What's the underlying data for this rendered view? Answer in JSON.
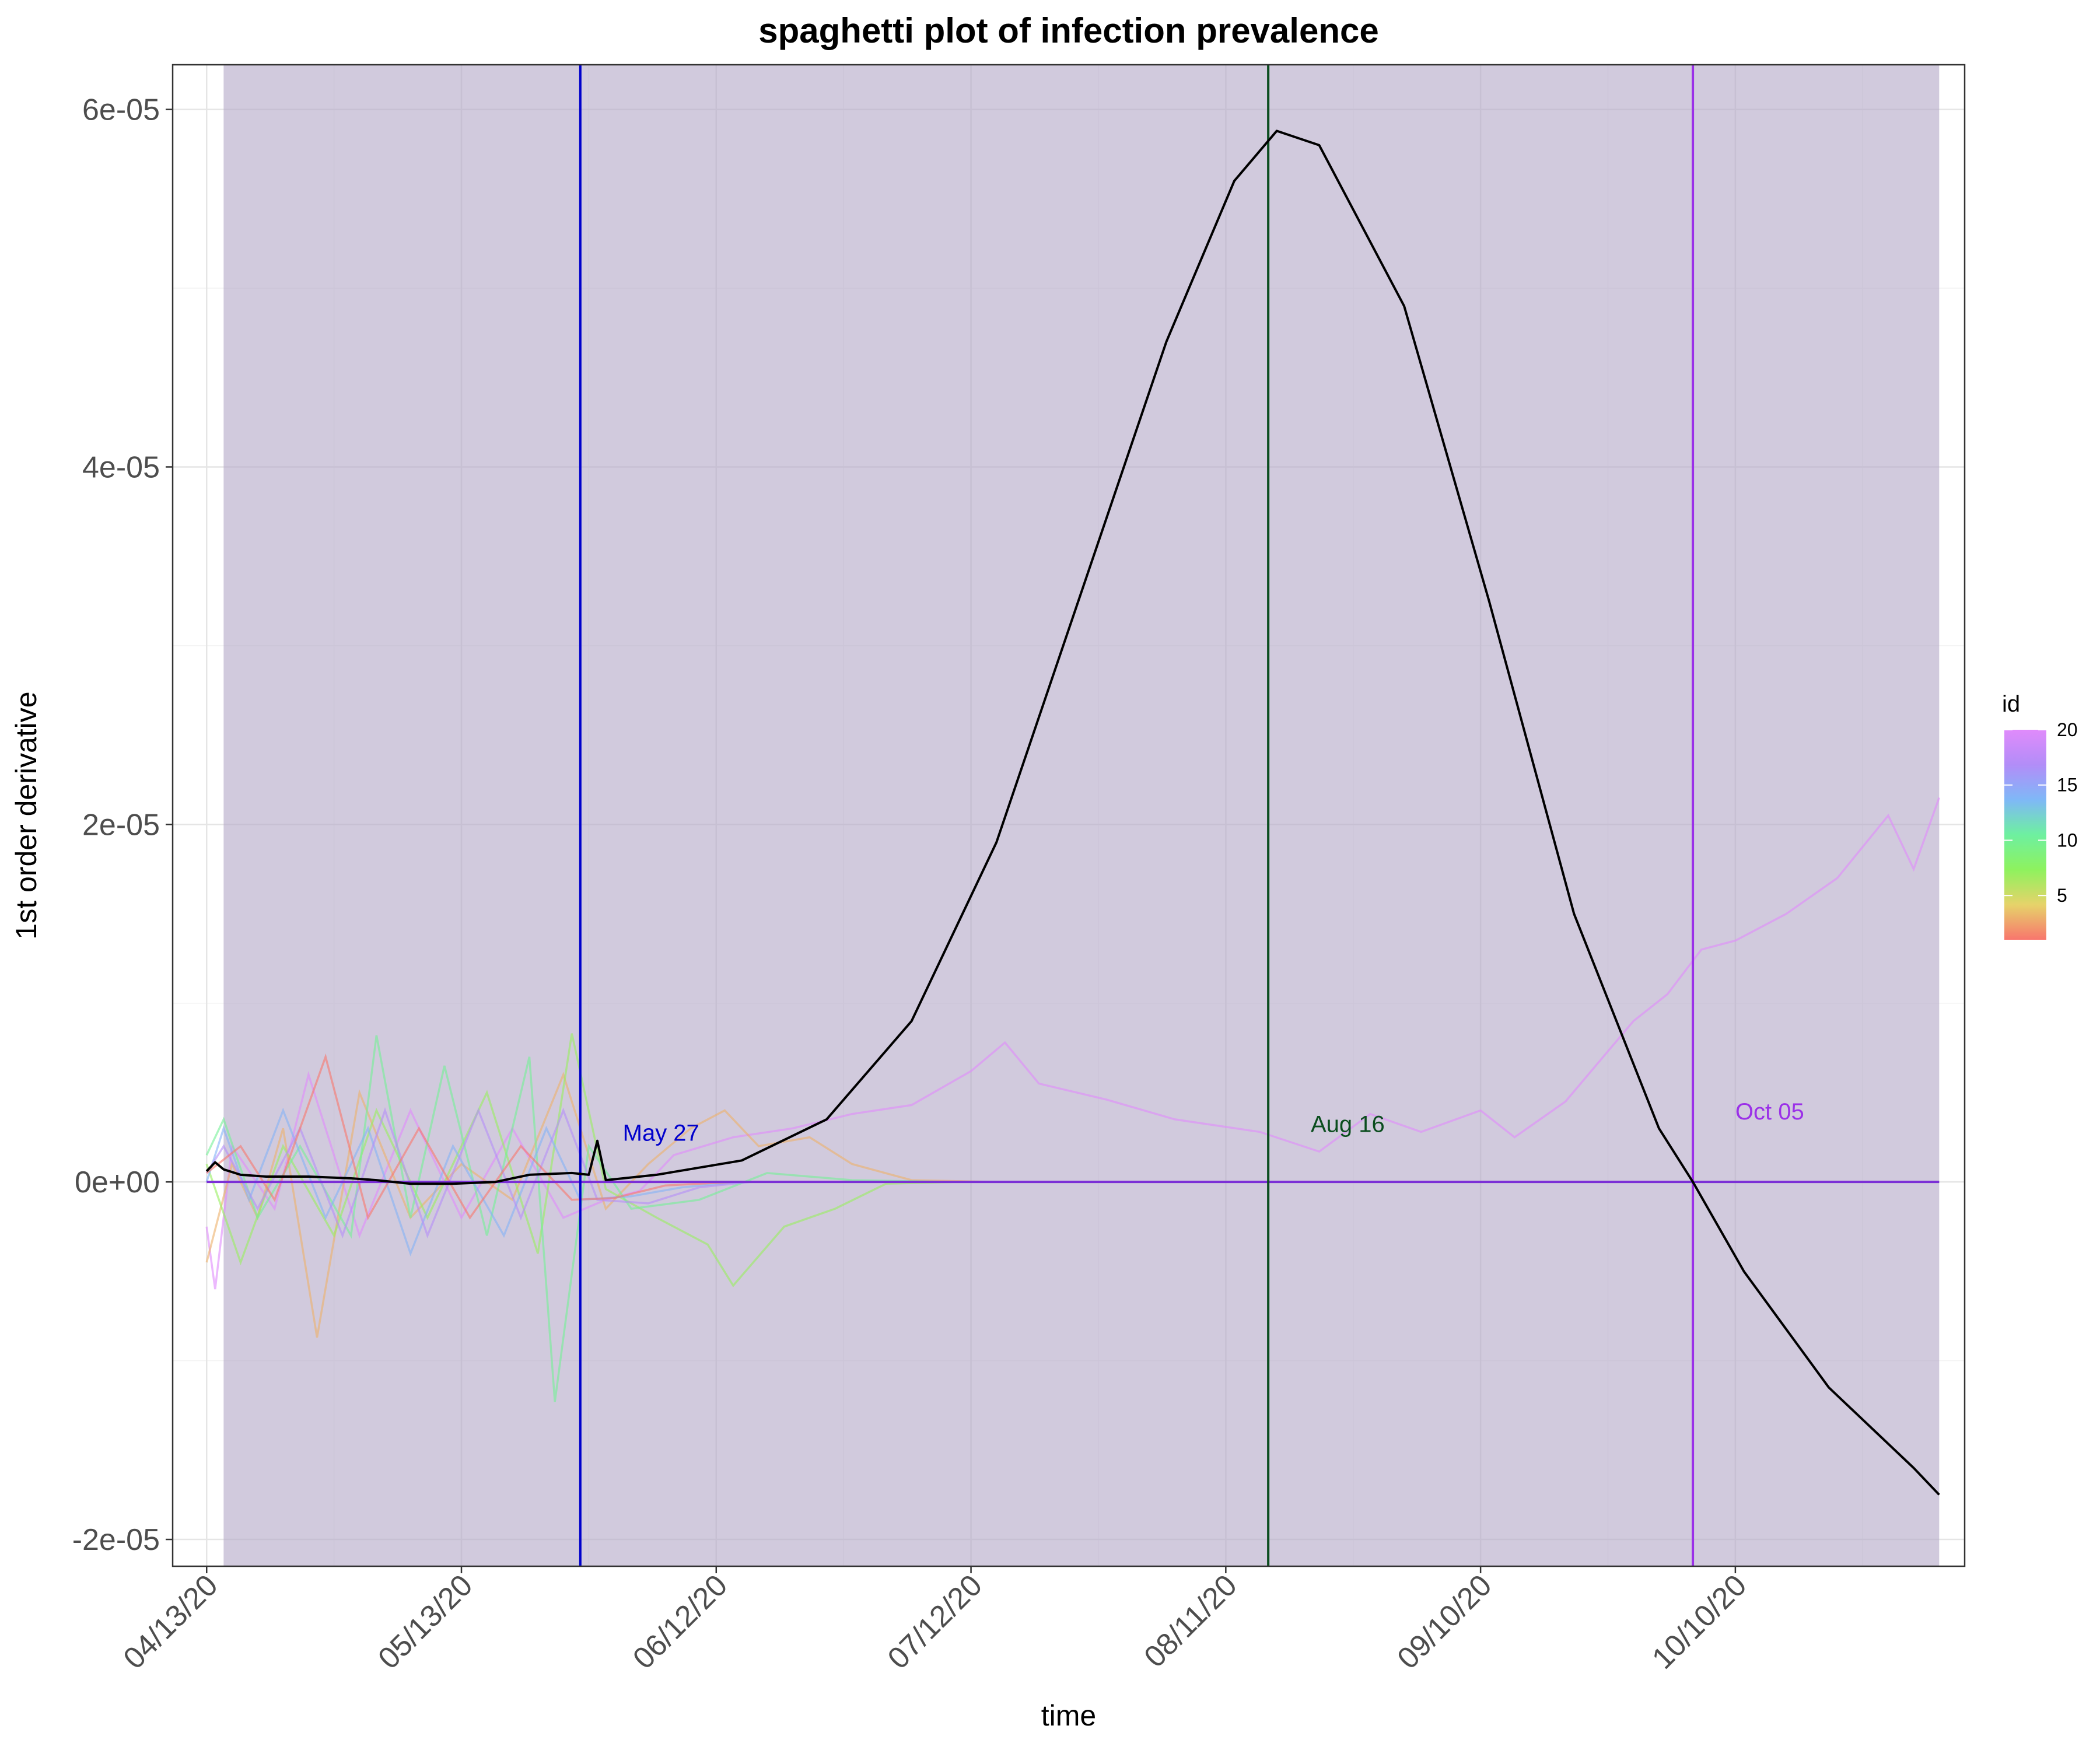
{
  "chart_data": {
    "type": "line",
    "title": "spaghetti plot of infection prevalence",
    "xlabel": "time",
    "ylabel": "1st order derivative",
    "x_range": [
      "2020-04-09",
      "2020-11-06"
    ],
    "ylim": [
      -2.15e-05,
      6.25e-05
    ],
    "x_ticks": [
      {
        "date": "2020-04-13",
        "label": "04/13/20"
      },
      {
        "date": "2020-05-13",
        "label": "05/13/20"
      },
      {
        "date": "2020-06-12",
        "label": "06/12/20"
      },
      {
        "date": "2020-07-12",
        "label": "07/12/20"
      },
      {
        "date": "2020-08-11",
        "label": "08/11/20"
      },
      {
        "date": "2020-09-10",
        "label": "09/10/20"
      },
      {
        "date": "2020-10-10",
        "label": "10/10/20"
      }
    ],
    "y_ticks": [
      {
        "value": -2e-05,
        "label": "-2e-05"
      },
      {
        "value": 0,
        "label": "0e+00"
      },
      {
        "value": 2e-05,
        "label": "2e-05"
      },
      {
        "value": 4e-05,
        "label": "4e-05"
      },
      {
        "value": 6e-05,
        "label": "6e-05"
      }
    ],
    "grid": true,
    "shaded_band": {
      "from": "2020-04-15",
      "to": "2020-11-03",
      "color": "#b3a6c6"
    },
    "vertical_lines": [
      {
        "date": "2020-05-27",
        "color": "#0000cc",
        "label": "May 27",
        "label_date": "2020-06-01",
        "label_value": 2.3e-06
      },
      {
        "date": "2020-08-16",
        "color": "#0b4d1e",
        "label": "Aug 16",
        "label_date": "2020-08-21",
        "label_value": 2.8e-06
      },
      {
        "date": "2020-10-05",
        "color": "#9b30e8",
        "label": "Oct 05",
        "label_date": "2020-10-10",
        "label_value": 3.5e-06
      }
    ],
    "zero_line_color": "#7b2fd6",
    "legend": {
      "title": "id",
      "position": "right",
      "labels": [
        "20",
        "15",
        "10",
        "5"
      ],
      "label_values": [
        20,
        15,
        10,
        5
      ],
      "range": [
        1,
        20
      ],
      "gradient": [
        "#f8766d",
        "#e6d36a",
        "#8ef25e",
        "#6ef0a0",
        "#7fb8f7",
        "#b28df8",
        "#e08bfb"
      ]
    },
    "fitted_curve": {
      "color": "#000000",
      "points": [
        [
          "2020-04-13",
          6e-07
        ],
        [
          "2020-04-14",
          1.1e-06
        ],
        [
          "2020-04-15",
          7e-07
        ],
        [
          "2020-04-17",
          4e-07
        ],
        [
          "2020-04-20",
          3e-07
        ],
        [
          "2020-04-25",
          3e-07
        ],
        [
          "2020-04-30",
          2e-07
        ],
        [
          "2020-05-03",
          1e-07
        ],
        [
          "2020-05-07",
          -1e-07
        ],
        [
          "2020-05-12",
          -1e-07
        ],
        [
          "2020-05-17",
          0
        ],
        [
          "2020-05-21",
          4e-07
        ],
        [
          "2020-05-26",
          5e-07
        ],
        [
          "2020-05-28",
          4e-07
        ],
        [
          "2020-05-29",
          2.3e-06
        ],
        [
          "2020-05-30",
          1e-07
        ],
        [
          "2020-06-05",
          4e-07
        ],
        [
          "2020-06-15",
          1.2e-06
        ],
        [
          "2020-06-25",
          3.5e-06
        ],
        [
          "2020-07-05",
          9e-06
        ],
        [
          "2020-07-15",
          1.9e-05
        ],
        [
          "2020-07-25",
          3.3e-05
        ],
        [
          "2020-08-04",
          4.7e-05
        ],
        [
          "2020-08-12",
          5.6e-05
        ],
        [
          "2020-08-17",
          5.88e-05
        ],
        [
          "2020-08-22",
          5.8e-05
        ],
        [
          "2020-09-01",
          4.9e-05
        ],
        [
          "2020-09-11",
          3.25e-05
        ],
        [
          "2020-09-21",
          1.5e-05
        ],
        [
          "2020-10-01",
          3e-06
        ],
        [
          "2020-10-05",
          0
        ],
        [
          "2020-10-11",
          -5e-06
        ],
        [
          "2020-10-21",
          -1.15e-05
        ],
        [
          "2020-10-31",
          -1.6e-05
        ],
        [
          "2020-11-03",
          -1.75e-05
        ]
      ]
    },
    "series": [
      {
        "id": 20,
        "points": [
          [
            "2020-04-13",
            -2.5e-06
          ],
          [
            "2020-04-14",
            -6e-06
          ],
          [
            "2020-04-16",
            2e-06
          ],
          [
            "2020-04-21",
            -1.5e-06
          ],
          [
            "2020-04-25",
            6e-06
          ],
          [
            "2020-05-01",
            -3e-06
          ],
          [
            "2020-05-07",
            4e-06
          ],
          [
            "2020-05-13",
            -2e-06
          ],
          [
            "2020-05-19",
            3e-06
          ],
          [
            "2020-05-25",
            -2e-06
          ],
          [
            "2020-05-30",
            -1e-06
          ],
          [
            "2020-06-03",
            -5e-07
          ],
          [
            "2020-06-07",
            1.5e-06
          ],
          [
            "2020-06-14",
            2.5e-06
          ],
          [
            "2020-06-21",
            3e-06
          ],
          [
            "2020-06-28",
            3.8e-06
          ],
          [
            "2020-07-05",
            4.3e-06
          ],
          [
            "2020-07-12",
            6.2e-06
          ],
          [
            "2020-07-16",
            7.8e-06
          ],
          [
            "2020-07-20",
            5.5e-06
          ],
          [
            "2020-07-28",
            4.6e-06
          ],
          [
            "2020-08-05",
            3.5e-06
          ],
          [
            "2020-08-15",
            2.8e-06
          ],
          [
            "2020-08-22",
            1.7e-06
          ],
          [
            "2020-08-28",
            3.8e-06
          ],
          [
            "2020-09-03",
            2.8e-06
          ],
          [
            "2020-09-10",
            4e-06
          ],
          [
            "2020-09-14",
            2.5e-06
          ],
          [
            "2020-09-20",
            4.5e-06
          ],
          [
            "2020-09-28",
            9e-06
          ],
          [
            "2020-10-02",
            1.05e-05
          ],
          [
            "2020-10-06",
            1.3e-05
          ],
          [
            "2020-10-10",
            1.35e-05
          ],
          [
            "2020-10-16",
            1.5e-05
          ],
          [
            "2020-10-22",
            1.7e-05
          ],
          [
            "2020-10-28",
            2.05e-05
          ],
          [
            "2020-10-31",
            1.75e-05
          ],
          [
            "2020-11-03",
            2.15e-05
          ]
        ]
      },
      {
        "id": 3,
        "points": [
          [
            "2020-04-13",
            -4.5e-06
          ],
          [
            "2020-04-16",
            1e-06
          ],
          [
            "2020-04-19",
            -2e-06
          ],
          [
            "2020-04-22",
            3e-06
          ],
          [
            "2020-04-26",
            -8.7e-06
          ],
          [
            "2020-05-01",
            5e-06
          ],
          [
            "2020-05-07",
            -2e-06
          ],
          [
            "2020-05-13",
            1e-06
          ],
          [
            "2020-05-19",
            -1e-06
          ],
          [
            "2020-05-25",
            6e-06
          ],
          [
            "2020-05-30",
            -1.5e-06
          ],
          [
            "2020-06-04",
            1e-06
          ],
          [
            "2020-06-09",
            3e-06
          ],
          [
            "2020-06-13",
            4e-06
          ],
          [
            "2020-06-17",
            2e-06
          ],
          [
            "2020-06-23",
            2.5e-06
          ],
          [
            "2020-06-28",
            1e-06
          ],
          [
            "2020-07-05",
            1e-07
          ],
          [
            "2020-07-15",
            0
          ]
        ]
      },
      {
        "id": 7,
        "points": [
          [
            "2020-04-13",
            1e-06
          ],
          [
            "2020-04-17",
            -4.5e-06
          ],
          [
            "2020-04-22",
            2e-06
          ],
          [
            "2020-04-28",
            -3e-06
          ],
          [
            "2020-05-03",
            4e-06
          ],
          [
            "2020-05-09",
            -2e-06
          ],
          [
            "2020-05-16",
            5e-06
          ],
          [
            "2020-05-22",
            -4e-06
          ],
          [
            "2020-05-26",
            8.3e-06
          ],
          [
            "2020-05-30",
            -4e-07
          ],
          [
            "2020-06-05",
            -2e-06
          ],
          [
            "2020-06-11",
            -3.5e-06
          ],
          [
            "2020-06-14",
            -5.8e-06
          ],
          [
            "2020-06-20",
            -2.5e-06
          ],
          [
            "2020-06-26",
            -1.5e-06
          ],
          [
            "2020-07-02",
            -1e-07
          ],
          [
            "2020-07-10",
            0
          ]
        ]
      },
      {
        "id": 10,
        "points": [
          [
            "2020-04-13",
            1.5e-06
          ],
          [
            "2020-04-15",
            3.5e-06
          ],
          [
            "2020-04-19",
            -2e-06
          ],
          [
            "2020-04-24",
            2e-06
          ],
          [
            "2020-04-30",
            -3e-06
          ],
          [
            "2020-05-03",
            8.2e-06
          ],
          [
            "2020-05-07",
            -2e-06
          ],
          [
            "2020-05-11",
            6.5e-06
          ],
          [
            "2020-05-16",
            -3e-06
          ],
          [
            "2020-05-21",
            7e-06
          ],
          [
            "2020-05-24",
            -1.23e-05
          ],
          [
            "2020-05-28",
            2e-06
          ],
          [
            "2020-06-02",
            -1.5e-06
          ],
          [
            "2020-06-10",
            -1e-06
          ],
          [
            "2020-06-18",
            5e-07
          ],
          [
            "2020-06-28",
            1e-07
          ],
          [
            "2020-07-10",
            0
          ]
        ]
      },
      {
        "id": 14,
        "points": [
          [
            "2020-04-13",
            0
          ],
          [
            "2020-04-15",
            3e-06
          ],
          [
            "2020-04-18",
            -1e-06
          ],
          [
            "2020-04-22",
            4e-06
          ],
          [
            "2020-04-27",
            -2e-06
          ],
          [
            "2020-05-02",
            3e-06
          ],
          [
            "2020-05-07",
            -4e-06
          ],
          [
            "2020-05-12",
            2e-06
          ],
          [
            "2020-05-18",
            -3e-06
          ],
          [
            "2020-05-23",
            3e-06
          ],
          [
            "2020-05-27",
            -1e-06
          ],
          [
            "2020-06-02",
            -8e-07
          ],
          [
            "2020-06-08",
            -3e-07
          ],
          [
            "2020-06-15",
            0
          ]
        ]
      },
      {
        "id": 17,
        "points": [
          [
            "2020-04-13",
            5e-07
          ],
          [
            "2020-04-15",
            2e-06
          ],
          [
            "2020-04-19",
            -1.5e-06
          ],
          [
            "2020-04-24",
            3e-06
          ],
          [
            "2020-04-29",
            -3e-06
          ],
          [
            "2020-05-04",
            4e-06
          ],
          [
            "2020-05-09",
            -3e-06
          ],
          [
            "2020-05-15",
            4e-06
          ],
          [
            "2020-05-20",
            -2e-06
          ],
          [
            "2020-05-25",
            4e-06
          ],
          [
            "2020-05-29",
            -1e-06
          ],
          [
            "2020-06-04",
            -1.2e-06
          ],
          [
            "2020-06-10",
            -3e-07
          ],
          [
            "2020-06-16",
            0
          ]
        ]
      },
      {
        "id": 1,
        "points": [
          [
            "2020-04-13",
            5e-07
          ],
          [
            "2020-04-17",
            2e-06
          ],
          [
            "2020-04-21",
            -1e-06
          ],
          [
            "2020-04-27",
            7e-06
          ],
          [
            "2020-05-02",
            -2e-06
          ],
          [
            "2020-05-08",
            3e-06
          ],
          [
            "2020-05-14",
            -2e-06
          ],
          [
            "2020-05-20",
            2e-06
          ],
          [
            "2020-05-26",
            -1e-06
          ],
          [
            "2020-05-31",
            -9e-07
          ],
          [
            "2020-06-06",
            -2e-07
          ],
          [
            "2020-06-14",
            0
          ]
        ]
      }
    ]
  }
}
